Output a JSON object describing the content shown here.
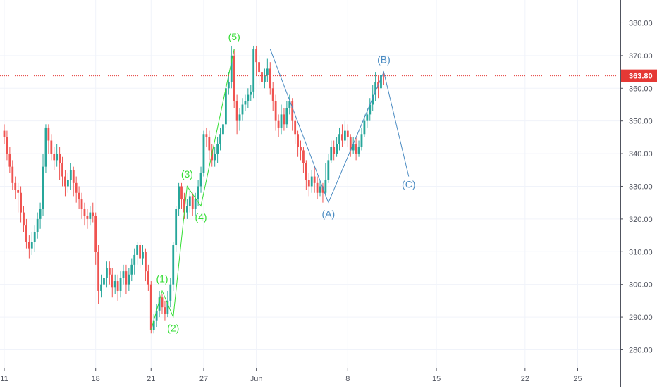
{
  "chart_data": {
    "type": "candlestick",
    "title": "",
    "xlabel": "",
    "ylabel": "",
    "ylim": [
      274.5,
      387.0
    ],
    "y_ticks": [
      "280.00",
      "290.00",
      "300.00",
      "310.00",
      "320.00",
      "330.00",
      "340.00",
      "350.00",
      "360.00",
      "370.00",
      "380.00"
    ],
    "y_tick_values": [
      280,
      290,
      300,
      310,
      320,
      330,
      340,
      350,
      360,
      370,
      380
    ],
    "x_ticks": [
      {
        "label": "11",
        "bar": 0
      },
      {
        "label": "18",
        "bar": 33
      },
      {
        "label": "21",
        "bar": 53
      },
      {
        "label": "27",
        "bar": 72
      },
      {
        "label": "Jun",
        "bar": 91
      },
      {
        "label": "8",
        "bar": 124
      },
      {
        "label": "15",
        "bar": 156
      },
      {
        "label": "22",
        "bar": 188
      },
      {
        "label": "25",
        "bar": 207
      }
    ],
    "last_price": {
      "value": 363.8,
      "label": "363.80"
    },
    "colors": {
      "up": "#26a69a",
      "down": "#ef5350",
      "wave_green": "#33dd33",
      "wave_blue": "#4a8bc2",
      "price_line": "#e53935"
    },
    "candles": [
      [
        347,
        345,
        349,
        343
      ],
      [
        345,
        340,
        347,
        338
      ],
      [
        340,
        336,
        342,
        334
      ],
      [
        336,
        331,
        338,
        329
      ],
      [
        331,
        329,
        333,
        326
      ],
      [
        329,
        328,
        331,
        322
      ],
      [
        328,
        322,
        330,
        319
      ],
      [
        322,
        318,
        324,
        316
      ],
      [
        318,
        313,
        320,
        311
      ],
      [
        313,
        311,
        315,
        308
      ],
      [
        311,
        313,
        316,
        309
      ],
      [
        313,
        316,
        318,
        310
      ],
      [
        316,
        320,
        322,
        314
      ],
      [
        320,
        323,
        325,
        317
      ],
      [
        323,
        336,
        340,
        321
      ],
      [
        336,
        348,
        349,
        334
      ],
      [
        348,
        344,
        349,
        340
      ],
      [
        344,
        340,
        346,
        338
      ],
      [
        340,
        338,
        342,
        335
      ],
      [
        338,
        340,
        343,
        336
      ],
      [
        340,
        337,
        342,
        332
      ],
      [
        337,
        333,
        339,
        330
      ],
      [
        333,
        330,
        335,
        327
      ],
      [
        330,
        332,
        334,
        328
      ],
      [
        332,
        335,
        337,
        329
      ],
      [
        335,
        331,
        336,
        327
      ],
      [
        331,
        328,
        333,
        325
      ],
      [
        328,
        326,
        330,
        323
      ],
      [
        326,
        323,
        328,
        320
      ],
      [
        323,
        321,
        325,
        318
      ],
      [
        321,
        320,
        323,
        317
      ],
      [
        320,
        322,
        324,
        318
      ],
      [
        322,
        321,
        325,
        319
      ],
      [
        321,
        310,
        322,
        306
      ],
      [
        310,
        298,
        312,
        294
      ],
      [
        298,
        300,
        303,
        296
      ],
      [
        300,
        302,
        305,
        298
      ],
      [
        302,
        305,
        307,
        299
      ],
      [
        305,
        303,
        307,
        300
      ],
      [
        303,
        299,
        305,
        296
      ],
      [
        299,
        301,
        303,
        297
      ],
      [
        301,
        298,
        303,
        295
      ],
      [
        298,
        302,
        304,
        296
      ],
      [
        302,
        304,
        306,
        300
      ],
      [
        304,
        300,
        306,
        297
      ],
      [
        300,
        303,
        305,
        298
      ],
      [
        303,
        306,
        308,
        301
      ],
      [
        306,
        309,
        311,
        303
      ],
      [
        309,
        312,
        313,
        306
      ],
      [
        312,
        308,
        313,
        305
      ],
      [
        308,
        310,
        312,
        306
      ],
      [
        310,
        304,
        311,
        301
      ],
      [
        304,
        300,
        306,
        298
      ],
      [
        300,
        286,
        301,
        285
      ],
      [
        286,
        289,
        291,
        285
      ],
      [
        289,
        292,
        294,
        287
      ],
      [
        292,
        296,
        298,
        290
      ],
      [
        296,
        293,
        297,
        291
      ],
      [
        293,
        291,
        295,
        289
      ],
      [
        291,
        295,
        298,
        290
      ],
      [
        295,
        300,
        302,
        293
      ],
      [
        300,
        312,
        313,
        298
      ],
      [
        312,
        323,
        324,
        310
      ],
      [
        323,
        330,
        331,
        321
      ],
      [
        330,
        326,
        331,
        323
      ],
      [
        326,
        322,
        328,
        320
      ],
      [
        322,
        324,
        326,
        320
      ],
      [
        324,
        327,
        329,
        322
      ],
      [
        327,
        323,
        328,
        321
      ],
      [
        323,
        326,
        328,
        321
      ],
      [
        326,
        330,
        332,
        324
      ],
      [
        330,
        334,
        336,
        328
      ],
      [
        334,
        346,
        347,
        333
      ],
      [
        346,
        345,
        348,
        342
      ],
      [
        345,
        341,
        347,
        338
      ],
      [
        341,
        338,
        343,
        336
      ],
      [
        338,
        340,
        342,
        336
      ],
      [
        340,
        343,
        345,
        337
      ],
      [
        343,
        346,
        348,
        341
      ],
      [
        346,
        349,
        351,
        344
      ],
      [
        349,
        360,
        361,
        348
      ],
      [
        360,
        362,
        365,
        358
      ],
      [
        362,
        370,
        373,
        360
      ],
      [
        370,
        356,
        372,
        354
      ],
      [
        356,
        350,
        358,
        346
      ],
      [
        350,
        352,
        354,
        347
      ],
      [
        352,
        355,
        357,
        350
      ],
      [
        355,
        356,
        358,
        353
      ],
      [
        356,
        358,
        360,
        354
      ],
      [
        358,
        359,
        361,
        356
      ],
      [
        359,
        372,
        373,
        357
      ],
      [
        372,
        368,
        373,
        364
      ],
      [
        368,
        365,
        370,
        361
      ],
      [
        365,
        362,
        368,
        359
      ],
      [
        362,
        364,
        366,
        360
      ],
      [
        364,
        366,
        369,
        362
      ],
      [
        366,
        360,
        368,
        358
      ],
      [
        360,
        356,
        362,
        353
      ],
      [
        356,
        350,
        358,
        347
      ],
      [
        350,
        348,
        352,
        345
      ],
      [
        348,
        352,
        355,
        346
      ],
      [
        352,
        349,
        354,
        347
      ],
      [
        349,
        354,
        356,
        348
      ],
      [
        354,
        356,
        358,
        352
      ],
      [
        356,
        350,
        357,
        347
      ],
      [
        350,
        346,
        352,
        343
      ],
      [
        346,
        342,
        347,
        339
      ],
      [
        342,
        341,
        344,
        338
      ],
      [
        341,
        337,
        342,
        334
      ],
      [
        337,
        332,
        338,
        329
      ],
      [
        332,
        330,
        334,
        327
      ],
      [
        330,
        333,
        335,
        328
      ],
      [
        333,
        331,
        336,
        328
      ],
      [
        331,
        328,
        333,
        326
      ],
      [
        328,
        330,
        332,
        327
      ],
      [
        330,
        328,
        331,
        325
      ],
      [
        328,
        332,
        337,
        327
      ],
      [
        332,
        338,
        340,
        331
      ],
      [
        338,
        342,
        344,
        337
      ],
      [
        342,
        340,
        344,
        338
      ],
      [
        340,
        343,
        345,
        339
      ],
      [
        343,
        346,
        348,
        341
      ],
      [
        346,
        344,
        349,
        342
      ],
      [
        344,
        347,
        350,
        343
      ],
      [
        347,
        345,
        349,
        342
      ],
      [
        345,
        341,
        346,
        339
      ],
      [
        341,
        343,
        345,
        340
      ],
      [
        343,
        340,
        345,
        338
      ],
      [
        340,
        342,
        344,
        339
      ],
      [
        342,
        346,
        348,
        341
      ],
      [
        346,
        350,
        352,
        345
      ],
      [
        350,
        352,
        354,
        348
      ],
      [
        352,
        355,
        357,
        350
      ],
      [
        355,
        358,
        361,
        353
      ],
      [
        358,
        362,
        365,
        356
      ],
      [
        362,
        360,
        364,
        357
      ],
      [
        360,
        364,
        366,
        358
      ],
      [
        364,
        363.8,
        365,
        361
      ]
    ],
    "waves": [
      {
        "color": "wave_green",
        "points": [
          [
            53,
            286
          ],
          [
            57,
            298
          ],
          [
            61,
            290
          ],
          [
            66,
            330
          ],
          [
            71,
            324
          ],
          [
            83,
            372
          ]
        ],
        "labels": [
          {
            "text": "(1)",
            "bar": 57,
            "price": 299,
            "pos": "above"
          },
          {
            "text": "(2)",
            "bar": 61,
            "price": 289,
            "pos": "below"
          },
          {
            "text": "(3)",
            "bar": 66,
            "price": 331,
            "pos": "above"
          },
          {
            "text": "(4)",
            "bar": 71,
            "price": 323,
            "pos": "below"
          },
          {
            "text": "(5)",
            "bar": 83,
            "price": 373,
            "pos": "above"
          }
        ]
      },
      {
        "color": "wave_blue",
        "points": [
          [
            96,
            372
          ],
          [
            117,
            325
          ],
          [
            137,
            365
          ],
          [
            146,
            333
          ]
        ],
        "labels": [
          {
            "text": "(A)",
            "bar": 117,
            "price": 324,
            "pos": "below"
          },
          {
            "text": "(B)",
            "bar": 137,
            "price": 366,
            "pos": "above"
          },
          {
            "text": "(C)",
            "bar": 146,
            "price": 333,
            "pos": "below"
          }
        ]
      }
    ]
  }
}
